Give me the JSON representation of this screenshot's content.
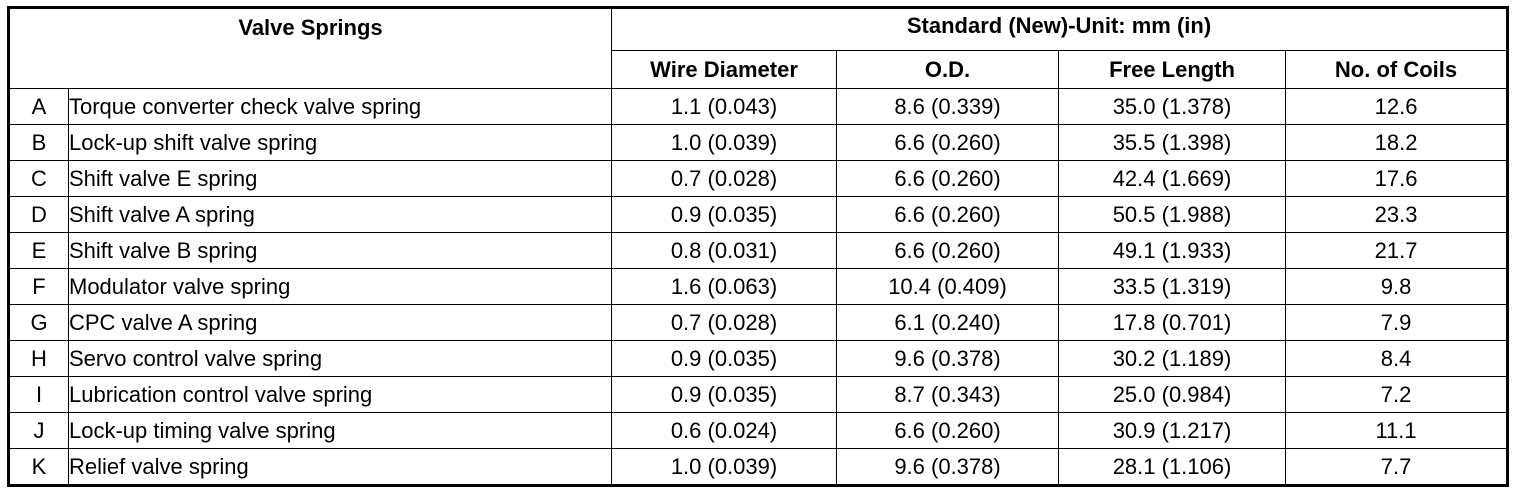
{
  "table": {
    "group_header": "Valve Springs",
    "standard_header": "Standard (New)-Unit: mm (in)",
    "columns": [
      "Wire Diameter",
      "O.D.",
      "Free Length",
      "No. of Coils"
    ],
    "rows": [
      {
        "letter": "A",
        "name": "Torque converter check valve spring",
        "wire": "1.1 (0.043)",
        "od": "8.6 (0.339)",
        "free": "35.0 (1.378)",
        "coils": "12.6"
      },
      {
        "letter": "B",
        "name": "Lock-up shift valve spring",
        "wire": "1.0 (0.039)",
        "od": "6.6 (0.260)",
        "free": "35.5 (1.398)",
        "coils": "18.2"
      },
      {
        "letter": "C",
        "name": "Shift valve E spring",
        "wire": "0.7 (0.028)",
        "od": "6.6 (0.260)",
        "free": "42.4 (1.669)",
        "coils": "17.6"
      },
      {
        "letter": "D",
        "name": "Shift valve A spring",
        "wire": "0.9 (0.035)",
        "od": "6.6 (0.260)",
        "free": "50.5 (1.988)",
        "coils": "23.3"
      },
      {
        "letter": "E",
        "name": "Shift valve B spring",
        "wire": "0.8 (0.031)",
        "od": "6.6 (0.260)",
        "free": "49.1 (1.933)",
        "coils": "21.7"
      },
      {
        "letter": "F",
        "name": "Modulator valve spring",
        "wire": "1.6 (0.063)",
        "od": "10.4 (0.409)",
        "free": "33.5 (1.319)",
        "coils": "9.8"
      },
      {
        "letter": "G",
        "name": "CPC valve A spring",
        "wire": "0.7 (0.028)",
        "od": "6.1 (0.240)",
        "free": "17.8 (0.701)",
        "coils": "7.9"
      },
      {
        "letter": "H",
        "name": "Servo control valve spring",
        "wire": "0.9 (0.035)",
        "od": "9.6 (0.378)",
        "free": "30.2 (1.189)",
        "coils": "8.4"
      },
      {
        "letter": "I",
        "name": "Lubrication control valve spring",
        "wire": "0.9 (0.035)",
        "od": "8.7 (0.343)",
        "free": "25.0 (0.984)",
        "coils": "7.2"
      },
      {
        "letter": "J",
        "name": "Lock-up timing valve spring",
        "wire": "0.6 (0.024)",
        "od": "6.6 (0.260)",
        "free": "30.9 (1.217)",
        "coils": "11.1"
      },
      {
        "letter": "K",
        "name": "Relief valve spring",
        "wire": "1.0 (0.039)",
        "od": "9.6 (0.378)",
        "free": "28.1 (1.106)",
        "coils": "7.7"
      }
    ]
  }
}
